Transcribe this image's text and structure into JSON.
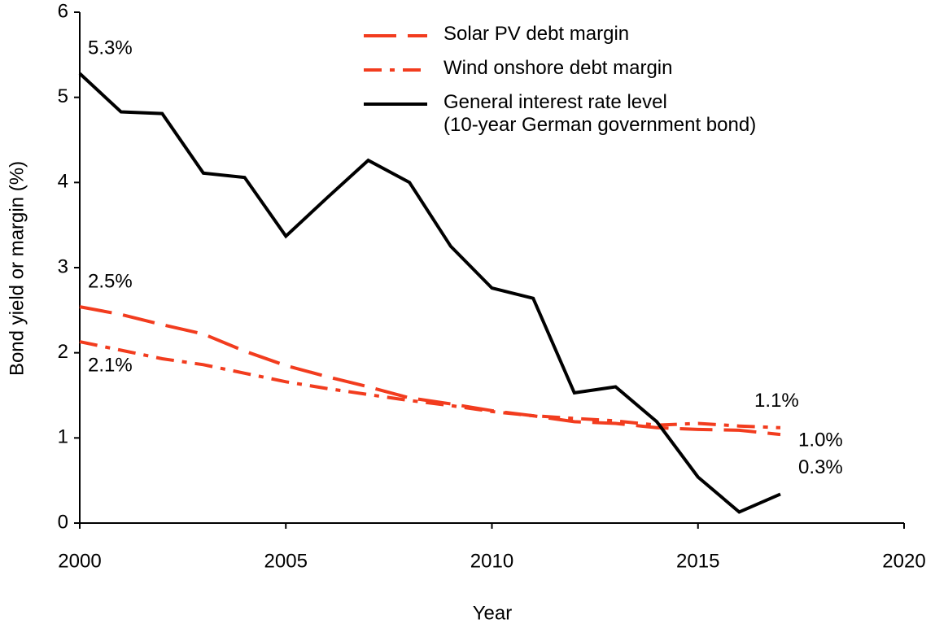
{
  "chart_data": {
    "type": "line",
    "xlabel": "Year",
    "ylabel": "Bond yield or margin (%)",
    "x": [
      2000,
      2001,
      2002,
      2003,
      2004,
      2005,
      2006,
      2007,
      2008,
      2009,
      2010,
      2011,
      2012,
      2013,
      2014,
      2015,
      2016,
      2017
    ],
    "xlim": [
      2000,
      2020
    ],
    "xticks": [
      2000,
      2005,
      2010,
      2015,
      2020
    ],
    "ylim": [
      0,
      6
    ],
    "yticks": [
      0,
      1,
      2,
      3,
      4,
      5,
      6
    ],
    "grid": false,
    "legend": "top-right",
    "series": [
      {
        "name": "Solar PV debt margin",
        "color": "#f23c1e",
        "dash": "long-dash",
        "values": [
          2.54,
          2.45,
          2.33,
          2.22,
          2.02,
          1.85,
          1.72,
          1.6,
          1.47,
          1.4,
          1.32,
          1.26,
          1.19,
          1.17,
          1.12,
          1.1,
          1.09,
          1.04
        ],
        "value_labels": [
          "2.5%",
          null,
          null,
          null,
          null,
          null,
          null,
          null,
          null,
          null,
          null,
          null,
          null,
          null,
          null,
          null,
          null,
          "1.0%"
        ]
      },
      {
        "name": "Wind onshore debt margin",
        "color": "#f23c1e",
        "dash": "dash-dot",
        "values": [
          2.13,
          2.03,
          1.93,
          1.86,
          1.76,
          1.66,
          1.58,
          1.51,
          1.44,
          1.38,
          1.31,
          1.26,
          1.23,
          1.2,
          1.15,
          1.17,
          1.14,
          1.12
        ],
        "value_labels": [
          "2.1%",
          null,
          null,
          null,
          null,
          null,
          null,
          null,
          null,
          null,
          null,
          null,
          null,
          null,
          null,
          null,
          null,
          "1.1%"
        ]
      },
      {
        "name": "General interest rate level\n(10-year German government bond)",
        "color": "#000000",
        "dash": "solid",
        "values": [
          5.28,
          4.83,
          4.81,
          4.11,
          4.06,
          3.37,
          3.82,
          4.26,
          4.0,
          3.25,
          2.76,
          2.64,
          1.53,
          1.6,
          1.19,
          0.54,
          0.13,
          0.34
        ],
        "value_labels": [
          "5.3%",
          null,
          null,
          null,
          null,
          null,
          null,
          null,
          null,
          null,
          null,
          null,
          null,
          null,
          null,
          null,
          null,
          "0.3%"
        ]
      }
    ]
  }
}
